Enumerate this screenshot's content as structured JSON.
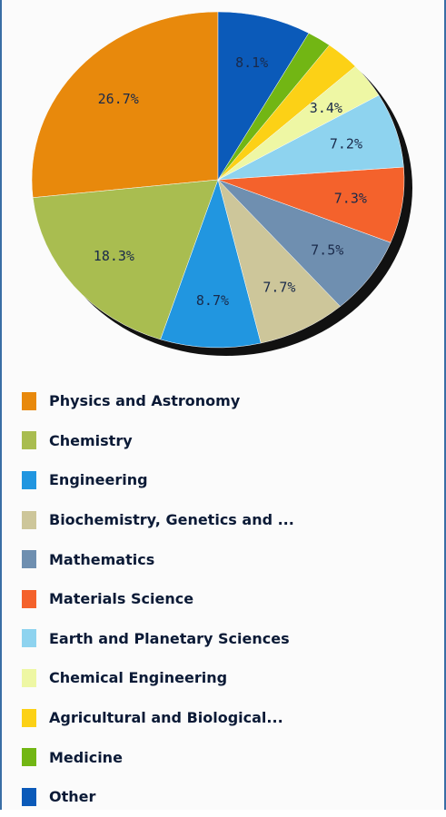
{
  "chart_data": {
    "type": "pie",
    "categories": [
      "Physics and Astronomy",
      "Chemistry",
      "Engineering",
      "Biochemistry, Genetics and ...",
      "Mathematics",
      "Materials Science",
      "Earth and Planetary Sciences",
      "Chemical Engineering",
      "Agricultural and Biological...",
      "Medicine",
      "Other"
    ],
    "values": [
      26.7,
      18.3,
      8.7,
      7.7,
      7.5,
      7.3,
      7.2,
      3.4,
      3.0,
      2.1,
      8.1
    ],
    "slice_labels": [
      "26.7%",
      "18.3%",
      "8.7%",
      "7.7%",
      "7.5%",
      "7.3%",
      "7.2%",
      "3.4%",
      "",
      "",
      "8.1%"
    ],
    "colors": [
      "#e8890c",
      "#a9bd50",
      "#2196e0",
      "#cdc69a",
      "#6f8fb0",
      "#f4622c",
      "#8ed3ef",
      "#eef7a4",
      "#fcd116",
      "#72b614",
      "#0b5ab9"
    ],
    "legend_position": "bottom"
  }
}
